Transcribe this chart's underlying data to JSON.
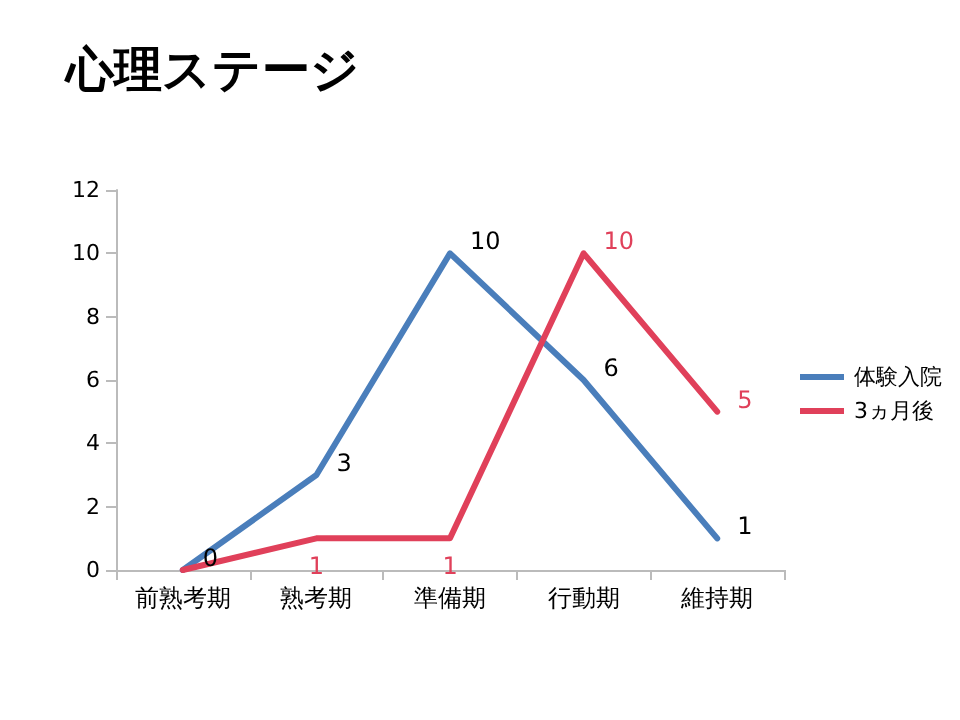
{
  "chart_data": {
    "type": "line",
    "title": "心理ステージ",
    "categories": [
      "前熟考期",
      "熟考期",
      "準備期",
      "行動期",
      "維持期"
    ],
    "series": [
      {
        "name": "体験入院",
        "color": "#4a7ebb",
        "values": [
          0,
          3,
          10,
          6,
          1
        ],
        "value_labels": [
          "0",
          "3",
          "10",
          "6",
          "1"
        ]
      },
      {
        "name": "3ヵ月後",
        "color": "#e0405a",
        "values": [
          0,
          1,
          1,
          10,
          5
        ],
        "value_labels": [
          null,
          "1",
          "1",
          "10",
          "5"
        ]
      }
    ],
    "ylim": [
      0,
      12
    ],
    "yticks": [
      0,
      2,
      4,
      6,
      8,
      10,
      12
    ],
    "grid": false,
    "legend": "right",
    "marker": "none",
    "line_style": "solid"
  }
}
